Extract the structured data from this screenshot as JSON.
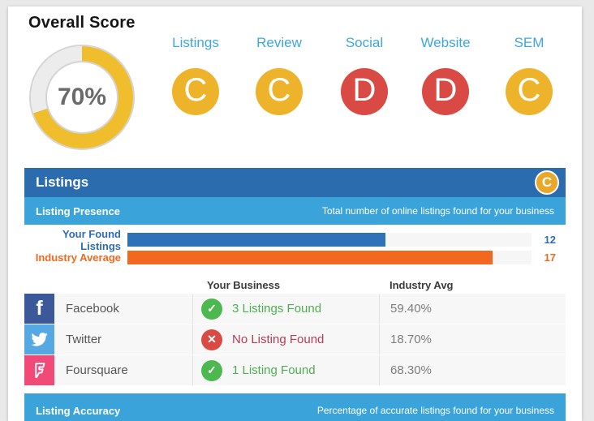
{
  "colors": {
    "page_bg": "#e9e9e9",
    "card_bg": "#ffffff",
    "header_dark_blue": "#2b6cae",
    "header_light_blue": "#3aa3da",
    "category_label_blue": "#3da6e0",
    "grade_yellow": "#edb32a",
    "grade_red": "#da4a45",
    "score_fill": "#f0be2d",
    "score_track": "#ececec",
    "success": "#4db750",
    "danger": "#da4a45",
    "success_text": "#4cae50",
    "danger_text": "#b63b53"
  },
  "icons": {
    "check_glyph": "✓",
    "x_glyph": "✕",
    "facebook_glyph": "f"
  },
  "overall": {
    "title": "Overall Score",
    "score_text": "70%",
    "percent": 70
  },
  "grades": [
    {
      "label": "Listings",
      "grade": "C",
      "color": "#edb32a"
    },
    {
      "label": "Review",
      "grade": "C",
      "color": "#edb32a"
    },
    {
      "label": "Social",
      "grade": "D",
      "color": "#da4a45"
    },
    {
      "label": "Website",
      "grade": "D",
      "color": "#da4a45"
    },
    {
      "label": "SEM",
      "grade": "C",
      "color": "#edb32a"
    }
  ],
  "section": {
    "title": "Listings",
    "grade": "C",
    "badge_color": "#eaa82b"
  },
  "presence": {
    "title": "Listing Presence",
    "subtitle": "Total number of online listings found for your business",
    "chart": {
      "type": "bar",
      "track_max": 18.8,
      "items": [
        {
          "label": "Your Found Listings",
          "value": 12,
          "color": "#2e6db4",
          "bar_color": "#2f72b8"
        },
        {
          "label": "Industry Average",
          "value": 17,
          "color": "#f2681f",
          "bar_color": "#f2681f"
        }
      ]
    },
    "table": {
      "col_your_business": "Your Business",
      "col_industry_avg": "Industry Avg",
      "rows": [
        {
          "platform": "Facebook",
          "icon": "facebook-icon",
          "icon_bg": "#3b5998",
          "status": "ok",
          "status_text": "3 Listings Found",
          "industry_avg": "59.40%"
        },
        {
          "platform": "Twitter",
          "icon": "twitter-icon",
          "icon_bg": "#55a8e2",
          "status": "error",
          "status_text": "No Listing Found",
          "industry_avg": "18.70%"
        },
        {
          "platform": "Foursquare",
          "icon": "foursquare-icon",
          "icon_bg": "#f14a78",
          "status": "ok",
          "status_text": "1 Listing Found",
          "industry_avg": "68.30%"
        }
      ]
    }
  },
  "accuracy": {
    "title": "Listing Accuracy",
    "subtitle": "Percentage of accurate listings found for your business"
  }
}
